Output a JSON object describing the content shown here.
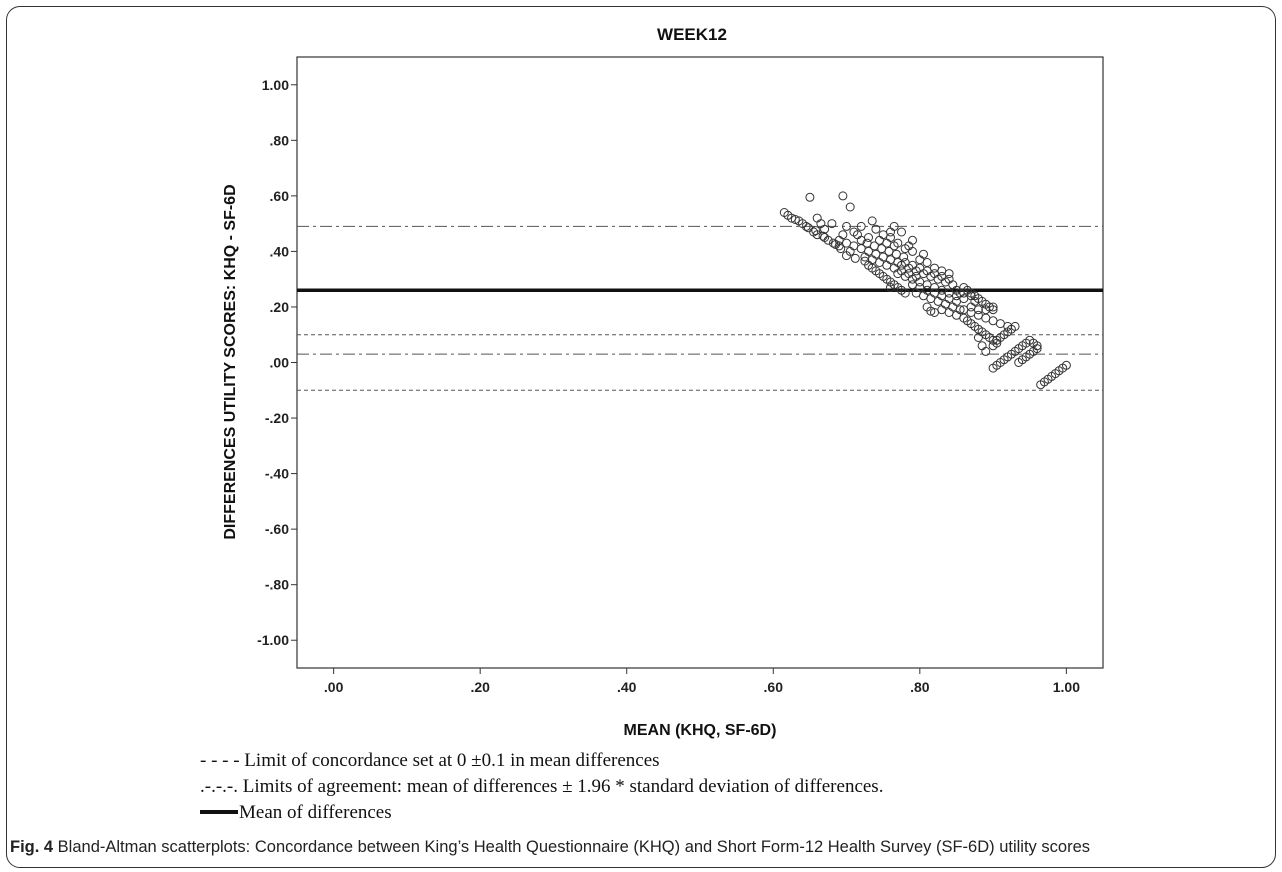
{
  "chart_data": {
    "type": "scatter",
    "title": "WEEK12",
    "xlabel": "MEAN (KHQ, SF-6D)",
    "ylabel": "DIFFERENCES UTILITY SCORES: KHQ - SF-6D",
    "xlim": [
      -0.05,
      1.05
    ],
    "ylim": [
      -1.1,
      1.1
    ],
    "x_ticks": [
      0.0,
      0.2,
      0.4,
      0.6,
      0.8,
      1.0
    ],
    "x_tick_labels": [
      ".00",
      ".20",
      ".40",
      ".60",
      ".80",
      "1.00"
    ],
    "y_ticks": [
      1.0,
      0.8,
      0.6,
      0.4,
      0.2,
      0.0,
      -0.2,
      -0.4,
      -0.6,
      -0.8,
      -1.0
    ],
    "y_tick_labels": [
      "1.00",
      ".80",
      ".60",
      ".40",
      ".20",
      ".00",
      "-.20",
      "-.40",
      "-.60",
      "-.80",
      "-1.00"
    ],
    "grid": false,
    "reference_lines": {
      "mean_of_differences": 0.26,
      "limits_of_agreement": [
        0.49,
        0.03
      ],
      "limits_of_concordance": [
        0.1,
        -0.1
      ]
    },
    "points": [
      [
        0.615,
        0.54
      ],
      [
        0.625,
        0.52
      ],
      [
        0.635,
        0.51
      ],
      [
        0.64,
        0.5
      ],
      [
        0.648,
        0.485
      ],
      [
        0.655,
        0.47
      ],
      [
        0.66,
        0.46
      ],
      [
        0.668,
        0.455
      ],
      [
        0.675,
        0.44
      ],
      [
        0.682,
        0.43
      ],
      [
        0.69,
        0.42
      ],
      [
        0.62,
        0.53
      ],
      [
        0.63,
        0.515
      ],
      [
        0.645,
        0.49
      ],
      [
        0.658,
        0.475
      ],
      [
        0.67,
        0.45
      ],
      [
        0.685,
        0.425
      ],
      [
        0.692,
        0.41
      ],
      [
        0.65,
        0.595
      ],
      [
        0.695,
        0.6
      ],
      [
        0.705,
        0.56
      ],
      [
        0.66,
        0.52
      ],
      [
        0.68,
        0.5
      ],
      [
        0.7,
        0.49
      ],
      [
        0.715,
        0.46
      ],
      [
        0.72,
        0.44
      ],
      [
        0.71,
        0.42
      ],
      [
        0.705,
        0.4
      ],
      [
        0.7,
        0.385
      ],
      [
        0.712,
        0.375
      ],
      [
        0.725,
        0.365
      ],
      [
        0.73,
        0.35
      ],
      [
        0.735,
        0.34
      ],
      [
        0.74,
        0.33
      ],
      [
        0.745,
        0.32
      ],
      [
        0.75,
        0.31
      ],
      [
        0.755,
        0.3
      ],
      [
        0.76,
        0.29
      ],
      [
        0.765,
        0.28
      ],
      [
        0.77,
        0.27
      ],
      [
        0.775,
        0.26
      ],
      [
        0.78,
        0.25
      ],
      [
        0.72,
        0.41
      ],
      [
        0.73,
        0.4
      ],
      [
        0.74,
        0.39
      ],
      [
        0.75,
        0.38
      ],
      [
        0.76,
        0.37
      ],
      [
        0.77,
        0.36
      ],
      [
        0.728,
        0.43
      ],
      [
        0.738,
        0.42
      ],
      [
        0.748,
        0.41
      ],
      [
        0.758,
        0.4
      ],
      [
        0.768,
        0.39
      ],
      [
        0.778,
        0.38
      ],
      [
        0.725,
        0.38
      ],
      [
        0.735,
        0.37
      ],
      [
        0.745,
        0.36
      ],
      [
        0.755,
        0.35
      ],
      [
        0.765,
        0.34
      ],
      [
        0.775,
        0.33
      ],
      [
        0.785,
        0.32
      ],
      [
        0.795,
        0.31
      ],
      [
        0.735,
        0.51
      ],
      [
        0.74,
        0.48
      ],
      [
        0.75,
        0.46
      ],
      [
        0.76,
        0.45
      ],
      [
        0.77,
        0.43
      ],
      [
        0.78,
        0.41
      ],
      [
        0.79,
        0.4
      ],
      [
        0.8,
        0.37
      ],
      [
        0.81,
        0.36
      ],
      [
        0.82,
        0.34
      ],
      [
        0.83,
        0.33
      ],
      [
        0.76,
        0.47
      ],
      [
        0.785,
        0.42
      ],
      [
        0.805,
        0.39
      ],
      [
        0.84,
        0.32
      ],
      [
        0.78,
        0.31
      ],
      [
        0.79,
        0.3
      ],
      [
        0.8,
        0.29
      ],
      [
        0.81,
        0.28
      ],
      [
        0.82,
        0.27
      ],
      [
        0.83,
        0.26
      ],
      [
        0.84,
        0.25
      ],
      [
        0.85,
        0.24
      ],
      [
        0.86,
        0.23
      ],
      [
        0.79,
        0.28
      ],
      [
        0.8,
        0.27
      ],
      [
        0.81,
        0.26
      ],
      [
        0.82,
        0.25
      ],
      [
        0.83,
        0.24
      ],
      [
        0.84,
        0.23
      ],
      [
        0.85,
        0.22
      ],
      [
        0.795,
        0.25
      ],
      [
        0.805,
        0.24
      ],
      [
        0.815,
        0.23
      ],
      [
        0.825,
        0.22
      ],
      [
        0.835,
        0.21
      ],
      [
        0.845,
        0.2
      ],
      [
        0.855,
        0.19
      ],
      [
        0.81,
        0.2
      ],
      [
        0.815,
        0.185
      ],
      [
        0.82,
        0.18
      ],
      [
        0.83,
        0.19
      ],
      [
        0.84,
        0.18
      ],
      [
        0.85,
        0.17
      ],
      [
        0.86,
        0.16
      ],
      [
        0.865,
        0.15
      ],
      [
        0.87,
        0.14
      ],
      [
        0.875,
        0.13
      ],
      [
        0.88,
        0.12
      ],
      [
        0.885,
        0.11
      ],
      [
        0.89,
        0.1
      ],
      [
        0.895,
        0.09
      ],
      [
        0.9,
        0.08
      ],
      [
        0.905,
        0.07
      ],
      [
        0.86,
        0.19
      ],
      [
        0.87,
        0.18
      ],
      [
        0.88,
        0.17
      ],
      [
        0.89,
        0.16
      ],
      [
        0.9,
        0.15
      ],
      [
        0.91,
        0.14
      ],
      [
        0.92,
        0.13
      ],
      [
        0.87,
        0.2
      ],
      [
        0.88,
        0.19
      ],
      [
        0.89,
        0.19
      ],
      [
        0.9,
        0.2
      ],
      [
        0.86,
        0.25
      ],
      [
        0.87,
        0.24
      ],
      [
        0.875,
        0.22
      ],
      [
        0.88,
        0.09
      ],
      [
        0.885,
        0.06
      ],
      [
        0.89,
        0.04
      ],
      [
        0.9,
        0.06
      ],
      [
        0.905,
        0.08
      ],
      [
        0.91,
        0.09
      ],
      [
        0.915,
        0.1
      ],
      [
        0.92,
        0.11
      ],
      [
        0.925,
        0.12
      ],
      [
        0.93,
        0.13
      ],
      [
        0.9,
        -0.02
      ],
      [
        0.905,
        -0.01
      ],
      [
        0.91,
        0.0
      ],
      [
        0.915,
        0.01
      ],
      [
        0.92,
        0.02
      ],
      [
        0.925,
        0.03
      ],
      [
        0.93,
        0.04
      ],
      [
        0.935,
        0.05
      ],
      [
        0.94,
        0.06
      ],
      [
        0.945,
        0.07
      ],
      [
        0.95,
        0.08
      ],
      [
        0.955,
        0.07
      ],
      [
        0.96,
        0.05
      ],
      [
        0.935,
        0.0
      ],
      [
        0.94,
        0.01
      ],
      [
        0.945,
        0.02
      ],
      [
        0.95,
        0.03
      ],
      [
        0.955,
        0.04
      ],
      [
        0.96,
        0.06
      ],
      [
        0.965,
        -0.08
      ],
      [
        0.97,
        -0.07
      ],
      [
        0.975,
        -0.06
      ],
      [
        0.98,
        -0.05
      ],
      [
        0.985,
        -0.04
      ],
      [
        0.99,
        -0.03
      ],
      [
        0.995,
        -0.02
      ],
      [
        1.0,
        -0.01
      ],
      [
        0.745,
        0.44
      ],
      [
        0.755,
        0.43
      ],
      [
        0.765,
        0.42
      ],
      [
        0.775,
        0.35
      ],
      [
        0.785,
        0.34
      ],
      [
        0.795,
        0.33
      ],
      [
        0.805,
        0.32
      ],
      [
        0.815,
        0.31
      ],
      [
        0.825,
        0.3
      ],
      [
        0.835,
        0.29
      ],
      [
        0.845,
        0.28
      ],
      [
        0.76,
        0.27
      ],
      [
        0.77,
        0.32
      ],
      [
        0.78,
        0.36
      ],
      [
        0.79,
        0.35
      ],
      [
        0.8,
        0.34
      ],
      [
        0.81,
        0.33
      ],
      [
        0.82,
        0.32
      ],
      [
        0.83,
        0.31
      ],
      [
        0.84,
        0.3
      ],
      [
        0.85,
        0.26
      ],
      [
        0.855,
        0.25
      ],
      [
        0.86,
        0.27
      ],
      [
        0.865,
        0.26
      ],
      [
        0.87,
        0.25
      ],
      [
        0.875,
        0.24
      ],
      [
        0.88,
        0.23
      ],
      [
        0.885,
        0.22
      ],
      [
        0.89,
        0.21
      ],
      [
        0.895,
        0.2
      ],
      [
        0.9,
        0.19
      ],
      [
        0.71,
        0.47
      ],
      [
        0.72,
        0.49
      ],
      [
        0.73,
        0.45
      ],
      [
        0.69,
        0.44
      ],
      [
        0.695,
        0.46
      ],
      [
        0.7,
        0.43
      ],
      [
        0.765,
        0.49
      ],
      [
        0.775,
        0.47
      ],
      [
        0.79,
        0.44
      ],
      [
        0.67,
        0.48
      ],
      [
        0.665,
        0.5
      ]
    ]
  },
  "legend": {
    "concordance_text": "- - - - Limit of concordance set at 0 ±0.1 in mean differences",
    "agreement_text": ".-.-.-. Limits of agreement: mean of differences ± 1.96 * standard deviation of differences.",
    "mean_text": "Mean of differences"
  },
  "caption": {
    "label": "Fig. 4",
    "text": " Bland-Altman scatterplots: Concordance between King’s Health Questionnaire (KHQ) and Short Form-12 Health Survey (SF-6D) utility scores"
  }
}
